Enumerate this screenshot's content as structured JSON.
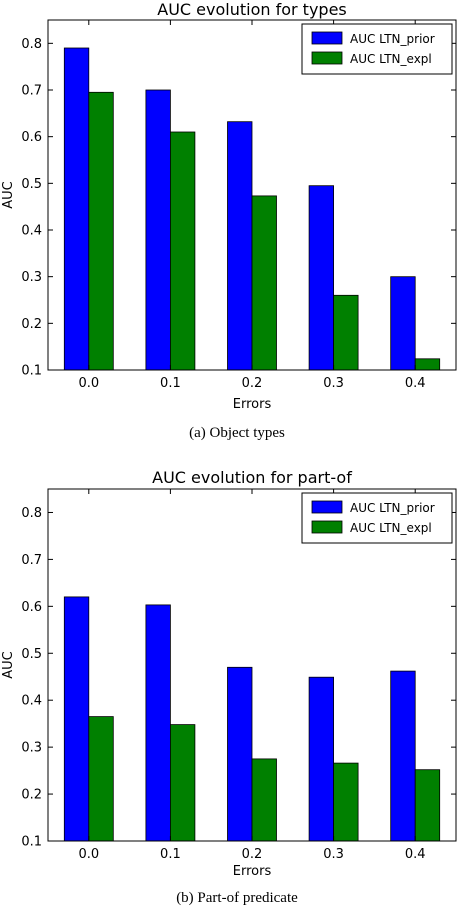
{
  "chart_data": [
    {
      "type": "bar",
      "title": "AUC evolution for types",
      "xlabel": "Errors",
      "ylabel": "AUC",
      "caption": "(a) Object types",
      "categories": [
        "0.0",
        "0.1",
        "0.2",
        "0.3",
        "0.4"
      ],
      "ylim": [
        0.1,
        0.85
      ],
      "yticks": [
        "0.1",
        "0.2",
        "0.3",
        "0.4",
        "0.5",
        "0.6",
        "0.7",
        "0.8"
      ],
      "grid": false,
      "legend_position": "top-right",
      "series": [
        {
          "name": "AUC LTN_prior",
          "color": "#0000ff",
          "values": [
            0.79,
            0.7,
            0.632,
            0.495,
            0.3
          ]
        },
        {
          "name": "AUC LTN_expl",
          "color": "#008000",
          "values": [
            0.695,
            0.61,
            0.473,
            0.26,
            0.124
          ]
        }
      ]
    },
    {
      "type": "bar",
      "title": "AUC evolution for part-of",
      "xlabel": "Errors",
      "ylabel": "AUC",
      "caption": "(b) Part-of predicate",
      "categories": [
        "0.0",
        "0.1",
        "0.2",
        "0.3",
        "0.4"
      ],
      "ylim": [
        0.1,
        0.85
      ],
      "yticks": [
        "0.1",
        "0.2",
        "0.3",
        "0.4",
        "0.5",
        "0.6",
        "0.7",
        "0.8"
      ],
      "grid": false,
      "legend_position": "top-right",
      "series": [
        {
          "name": "AUC LTN_prior",
          "color": "#0000ff",
          "values": [
            0.62,
            0.603,
            0.47,
            0.449,
            0.462
          ]
        },
        {
          "name": "AUC LTN_expl",
          "color": "#008000",
          "values": [
            0.365,
            0.348,
            0.275,
            0.266,
            0.252
          ]
        }
      ]
    }
  ]
}
